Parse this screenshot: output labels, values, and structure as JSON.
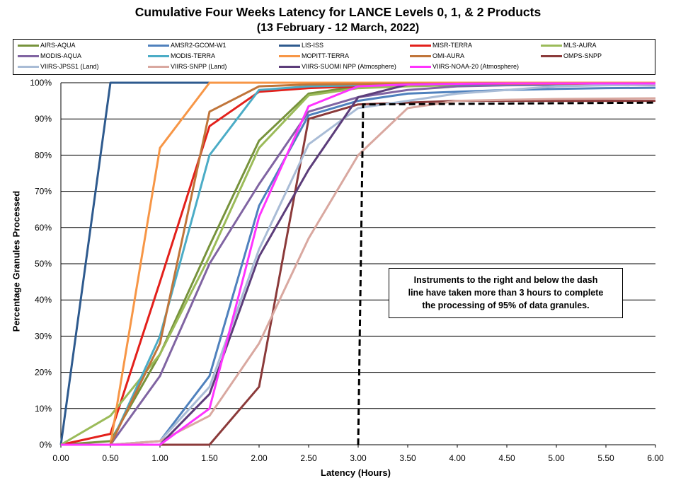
{
  "chart_data": {
    "type": "line",
    "title": "Cumulative Four Weeks Latency  for LANCE Levels 0, 1, & 2 Products",
    "subtitle": "(13  February   -  12  March,  2022)",
    "xlabel": "Latency (Hours)",
    "ylabel": "Percentage Granules Processed",
    "xlim": [
      0,
      6
    ],
    "ylim": [
      0,
      100
    ],
    "x_ticks": [
      "0.00",
      "0.50",
      "1.00",
      "1.50",
      "2.00",
      "2.50",
      "3.00",
      "3.50",
      "4.00",
      "4.50",
      "5.00",
      "5.50",
      "6.00"
    ],
    "y_ticks": [
      "0%",
      "10%",
      "20%",
      "30%",
      "40%",
      "50%",
      "60%",
      "70%",
      "80%",
      "90%",
      "100%"
    ],
    "grid": "horizontal",
    "legend_position": "top",
    "x": [
      0,
      0.5,
      1,
      1.5,
      2,
      2.5,
      3,
      3.5,
      4,
      4.5,
      5,
      5.5,
      6
    ],
    "series": [
      {
        "name": "AIRS-AQUA",
        "color": "#77933c",
        "values": [
          0,
          1,
          25,
          55,
          84,
          97,
          99,
          99.5,
          99.5,
          99.6,
          99.6,
          99.6,
          99.6
        ]
      },
      {
        "name": "AMSR2-GCOM-W1",
        "color": "#4f81bd",
        "values": [
          0,
          0,
          1,
          19,
          66,
          91,
          95,
          97,
          97.5,
          98,
          98.3,
          98.5,
          98.6
        ]
      },
      {
        "name": "LIS-ISS",
        "color": "#2e5a8e",
        "values": [
          0,
          100,
          100,
          100,
          100,
          100,
          100,
          100,
          100,
          100,
          100,
          100,
          100
        ]
      },
      {
        "name": "MISR-TERRA",
        "color": "#e3201b",
        "values": [
          0,
          3,
          45,
          88,
          97.5,
          98.5,
          99,
          99.2,
          99.3,
          99.4,
          99.4,
          99.4,
          99.4
        ]
      },
      {
        "name": "MLS-AURA",
        "color": "#9bbb59",
        "values": [
          0,
          8,
          25,
          52,
          82,
          96.5,
          98.5,
          99,
          99.3,
          99.5,
          99.6,
          99.6,
          99.6
        ]
      },
      {
        "name": "MODIS-AQUA",
        "color": "#8064a2",
        "values": [
          0,
          0,
          19,
          50,
          72,
          92,
          96,
          98,
          99,
          99.3,
          99.4,
          99.4,
          99.4
        ]
      },
      {
        "name": "MODIS-TERRA",
        "color": "#4bacc6",
        "values": [
          0,
          0,
          30,
          80,
          98,
          99,
          99.3,
          99.5,
          99.6,
          99.6,
          99.6,
          99.6,
          99.6
        ]
      },
      {
        "name": "MOPITT-TERRA",
        "color": "#f79646",
        "values": [
          0,
          0,
          82,
          100,
          100,
          100,
          100,
          100,
          100,
          100,
          100,
          100,
          100
        ]
      },
      {
        "name": "OMI-AURA",
        "color": "#c0753a",
        "values": [
          0,
          0,
          28,
          92,
          99,
          99.5,
          99.6,
          99.7,
          99.7,
          99.7,
          99.7,
          99.7,
          99.7
        ]
      },
      {
        "name": "OMPS-SNPP",
        "color": "#8b3a3a",
        "values": [
          0,
          0,
          0,
          0,
          16,
          90,
          94,
          94.5,
          95,
          95,
          95,
          95,
          95
        ]
      },
      {
        "name": "VIIRS-JPSS1 (Land)",
        "color": "#a9bcd6",
        "values": [
          0,
          0,
          1,
          16,
          54,
          83,
          93,
          95,
          97,
          98,
          99,
          99.3,
          99.5
        ]
      },
      {
        "name": "VIIRS-SNPP (Land)",
        "color": "#d9a8a0",
        "values": [
          0,
          0,
          1,
          8,
          28,
          57,
          80,
          93,
          95,
          95.3,
          95.5,
          95.6,
          95.7
        ]
      },
      {
        "name": "VIIRS-SUOMI NPP (Atmosphere)",
        "color": "#5c3d7a",
        "values": [
          0,
          0,
          0,
          14,
          52,
          76,
          96,
          99.5,
          99.7,
          99.8,
          99.8,
          99.8,
          99.8
        ]
      },
      {
        "name": "VIIRS-NOAA-20 (Atmosphere)",
        "color": "#ff33ff",
        "values": [
          0,
          0,
          0,
          10,
          63,
          93.5,
          99,
          99.5,
          99.7,
          99.8,
          99.8,
          99.8,
          99.8
        ]
      }
    ],
    "reference_line": {
      "style": "dashed",
      "color": "#000000",
      "points": [
        [
          3.0,
          0
        ],
        [
          3.05,
          94
        ],
        [
          6.0,
          94.5
        ]
      ]
    },
    "annotation": [
      "Instruments to the right and below the dash",
      "line have taken more than 3 hours to complete",
      "the processing of 95% of data granules."
    ]
  }
}
